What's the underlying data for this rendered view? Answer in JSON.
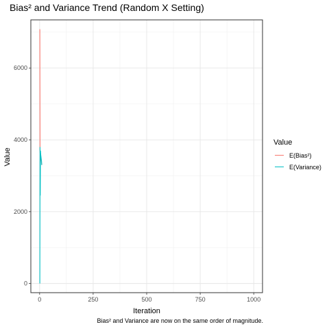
{
  "chart_data": {
    "type": "line",
    "title": "Bias² and Variance Trend (Random X Setting)",
    "xlabel": "Iteration",
    "ylabel": "Value",
    "caption": "Bias² and Variance are now on the same order of magnitude.",
    "xlim": [
      -41,
      1041
    ],
    "ylim": [
      -255,
      7340
    ],
    "x_ticks": [
      0,
      250,
      500,
      750,
      1000
    ],
    "y_ticks": [
      0,
      2000,
      4000,
      6000
    ],
    "grid": true,
    "legend_position": "right",
    "legend_title": "Value",
    "series": [
      {
        "name": "E(Bias²)",
        "color": "#F8766D",
        "x": [
          1,
          2,
          3,
          4,
          5,
          6,
          7,
          8,
          9,
          10
        ],
        "y": [
          7080,
          3650,
          3600,
          3580,
          3560,
          3500,
          3450,
          3400,
          3350,
          3300
        ]
      },
      {
        "name": "E(Variance)",
        "color": "#00BFC4",
        "x": [
          1,
          2,
          3,
          4,
          5,
          6,
          7,
          8,
          9,
          10
        ],
        "y": [
          0,
          3800,
          2450,
          3700,
          3600,
          3550,
          3500,
          3450,
          3400,
          3300
        ]
      }
    ]
  }
}
